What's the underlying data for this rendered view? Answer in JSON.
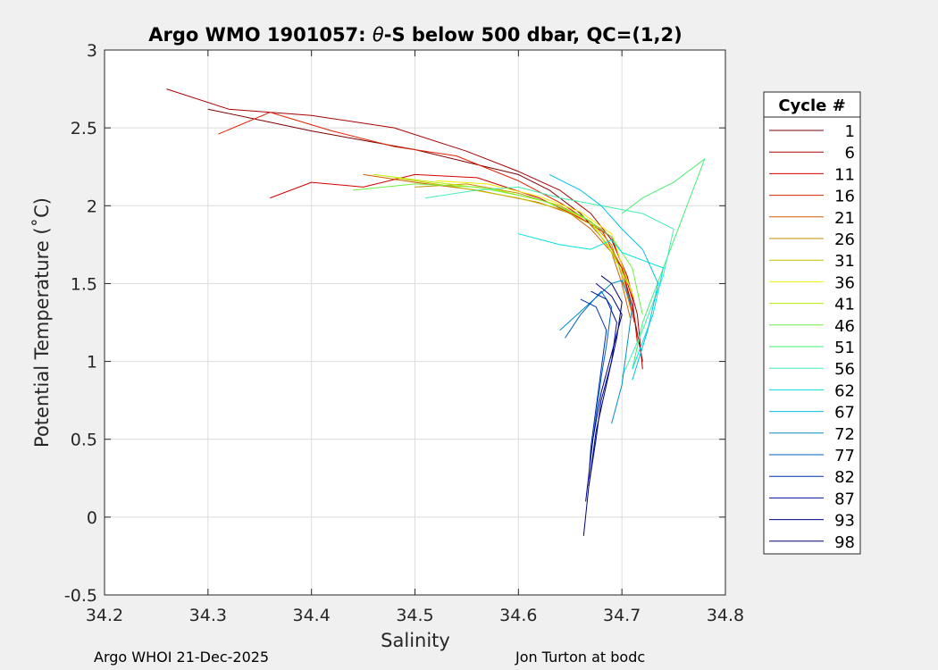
{
  "chart_data": {
    "type": "line",
    "title": "Argo WMO 1901057: θ-S below 500 dbar,  QC=(1,2)",
    "title_parts": {
      "prefix": "Argo WMO 1901057: ",
      "theta": "θ",
      "suffix": "-S below 500 dbar,  QC=(1,2)"
    },
    "xlabel": "Salinity",
    "ylabel": "Potential Temperature (˚C)",
    "xlim": [
      34.2,
      34.8
    ],
    "ylim": [
      -0.5,
      3
    ],
    "grid": true,
    "xticks": [
      "34.2",
      "34.3",
      "34.4",
      "34.5",
      "34.6",
      "34.7",
      "34.8"
    ],
    "yticks": [
      "-0.5",
      "0",
      "0.5",
      "1",
      "1.5",
      "2",
      "2.5",
      "3"
    ],
    "legend": {
      "title": "Cycle #",
      "placement": "outside-right",
      "entries": [
        "1",
        "6",
        "11",
        "16",
        "21",
        "26",
        "31",
        "36",
        "41",
        "46",
        "51",
        "56",
        "62",
        "67",
        "72",
        "77",
        "82",
        "87",
        "93",
        "98"
      ],
      "colors": [
        "#7a0000",
        "#a80000",
        "#d40000",
        "#e02000",
        "#d05c00",
        "#c89000",
        "#c8c000",
        "#f0f000",
        "#b8f000",
        "#70f040",
        "#40f070",
        "#40f0b0",
        "#00e0e0",
        "#00c0e0",
        "#0090c0",
        "#0060c0",
        "#0030b0",
        "#0010a0",
        "#000090",
        "#000070"
      ]
    },
    "series": [
      {
        "name": "1",
        "color": "#7a0000",
        "x": [
          34.3,
          34.35,
          34.4,
          34.45,
          34.5,
          34.55,
          34.6,
          34.63,
          34.66,
          34.68,
          34.7,
          34.71,
          34.72
        ],
        "y": [
          2.62,
          2.55,
          2.48,
          2.42,
          2.36,
          2.28,
          2.2,
          2.1,
          1.95,
          1.8,
          1.6,
          1.35,
          1.0
        ]
      },
      {
        "name": "6",
        "color": "#a80000",
        "x": [
          34.26,
          34.32,
          34.4,
          34.48,
          34.55,
          34.6,
          34.64,
          34.67,
          34.69,
          34.705,
          34.715,
          34.72
        ],
        "y": [
          2.75,
          2.62,
          2.58,
          2.5,
          2.35,
          2.22,
          2.1,
          1.95,
          1.78,
          1.55,
          1.3,
          0.95
        ]
      },
      {
        "name": "11",
        "color": "#d40000",
        "x": [
          34.36,
          34.4,
          34.45,
          34.5,
          34.56,
          34.62,
          34.66,
          34.69,
          34.7,
          34.71,
          34.715
        ],
        "y": [
          2.05,
          2.15,
          2.12,
          2.2,
          2.18,
          2.05,
          1.92,
          1.8,
          1.62,
          1.4,
          1.12
        ]
      },
      {
        "name": "16",
        "color": "#e02000",
        "x": [
          34.31,
          34.36,
          34.42,
          34.48,
          34.54,
          34.6,
          34.64,
          34.68,
          34.7,
          34.712
        ],
        "y": [
          2.46,
          2.6,
          2.48,
          2.38,
          2.32,
          2.16,
          2.02,
          1.85,
          1.6,
          1.25
        ]
      },
      {
        "name": "21",
        "color": "#d05c00",
        "x": [
          34.45,
          34.5,
          34.56,
          34.62,
          34.65,
          34.67,
          34.69,
          34.7,
          34.708
        ],
        "y": [
          2.2,
          2.15,
          2.1,
          2.02,
          1.95,
          1.85,
          1.7,
          1.5,
          1.28
        ]
      },
      {
        "name": "26",
        "color": "#c89000",
        "x": [
          34.5,
          34.55,
          34.6,
          34.64,
          34.67,
          34.69,
          34.7,
          34.71
        ],
        "y": [
          2.12,
          2.14,
          2.08,
          2.0,
          1.9,
          1.75,
          1.55,
          1.3
        ]
      },
      {
        "name": "31",
        "color": "#c8c000",
        "x": [
          34.48,
          34.54,
          34.6,
          34.64,
          34.67,
          34.69,
          34.705
        ],
        "y": [
          2.18,
          2.12,
          2.05,
          1.98,
          1.88,
          1.72,
          1.5
        ]
      },
      {
        "name": "36",
        "color": "#f0f000",
        "x": [
          34.52,
          34.57,
          34.62,
          34.66,
          34.69,
          34.7,
          34.712
        ],
        "y": [
          2.16,
          2.14,
          2.06,
          1.96,
          1.82,
          1.62,
          1.4
        ]
      },
      {
        "name": "41",
        "color": "#b8f000",
        "x": [
          34.46,
          34.52,
          34.58,
          34.63,
          34.67,
          34.69,
          34.71
        ],
        "y": [
          2.2,
          2.15,
          2.1,
          2.02,
          1.9,
          1.7,
          1.45
        ]
      },
      {
        "name": "46",
        "color": "#70f040",
        "x": [
          34.44,
          34.5,
          34.56,
          34.62,
          34.66,
          34.69,
          34.71,
          34.72
        ],
        "y": [
          2.1,
          2.14,
          2.12,
          2.04,
          1.94,
          1.8,
          1.6,
          1.3
        ]
      },
      {
        "name": "51",
        "color": "#40f070",
        "x": [
          34.7,
          34.72,
          34.75,
          34.78,
          34.76,
          34.74,
          34.72,
          34.71
        ],
        "y": [
          1.95,
          2.05,
          2.15,
          2.3,
          1.95,
          1.6,
          1.25,
          0.95
        ]
      },
      {
        "name": "56",
        "color": "#40f0b0",
        "x": [
          34.51,
          34.56,
          34.6,
          34.64,
          34.68,
          34.72,
          34.75,
          34.74,
          34.72,
          34.7
        ],
        "y": [
          2.05,
          2.1,
          2.12,
          2.05,
          2.0,
          1.95,
          1.85,
          1.55,
          1.2,
          0.9
        ]
      },
      {
        "name": "62",
        "color": "#00e0e0",
        "x": [
          34.6,
          34.64,
          34.67,
          34.69,
          34.7,
          34.72,
          34.74,
          34.73,
          34.71
        ],
        "y": [
          1.82,
          1.75,
          1.72,
          1.78,
          1.7,
          1.65,
          1.6,
          1.3,
          0.95
        ]
      },
      {
        "name": "67",
        "color": "#00c0e0",
        "x": [
          34.63,
          34.66,
          34.68,
          34.7,
          34.72,
          34.735,
          34.725,
          34.71
        ],
        "y": [
          2.2,
          2.1,
          2.0,
          1.85,
          1.72,
          1.5,
          1.2,
          0.88
        ]
      },
      {
        "name": "72",
        "color": "#0090c0",
        "x": [
          34.64,
          34.67,
          34.69,
          34.7,
          34.71,
          34.705,
          34.7,
          34.69
        ],
        "y": [
          1.2,
          1.38,
          1.5,
          1.52,
          1.35,
          1.1,
          0.85,
          0.6
        ]
      },
      {
        "name": "77",
        "color": "#0060c0",
        "x": [
          34.645,
          34.66,
          34.68,
          34.69,
          34.685,
          34.68,
          34.675,
          34.67
        ],
        "y": [
          1.15,
          1.3,
          1.45,
          1.35,
          1.1,
          0.9,
          0.65,
          0.4
        ]
      },
      {
        "name": "82",
        "color": "#0030b0",
        "x": [
          34.66,
          34.675,
          34.685,
          34.68,
          34.675,
          34.67,
          34.668
        ],
        "y": [
          1.4,
          1.35,
          1.2,
          0.95,
          0.7,
          0.45,
          0.25
        ]
      },
      {
        "name": "87",
        "color": "#0010a0",
        "x": [
          34.67,
          34.685,
          34.695,
          34.69,
          34.68,
          34.675,
          34.668
        ],
        "y": [
          1.45,
          1.4,
          1.25,
          1.0,
          0.75,
          0.5,
          0.2
        ]
      },
      {
        "name": "93",
        "color": "#000090",
        "x": [
          34.675,
          34.69,
          34.7,
          34.69,
          34.68,
          34.672,
          34.665
        ],
        "y": [
          1.5,
          1.42,
          1.3,
          1.05,
          0.8,
          0.5,
          0.1
        ]
      },
      {
        "name": "98",
        "color": "#000070",
        "x": [
          34.68,
          34.69,
          34.7,
          34.695,
          34.685,
          34.675,
          34.668,
          34.663
        ],
        "y": [
          1.55,
          1.5,
          1.38,
          1.15,
          0.85,
          0.55,
          0.2,
          -0.12
        ]
      }
    ]
  },
  "footer": {
    "left": "Argo WHOI 21-Dec-2025",
    "right": "Jon Turton at bodc"
  }
}
